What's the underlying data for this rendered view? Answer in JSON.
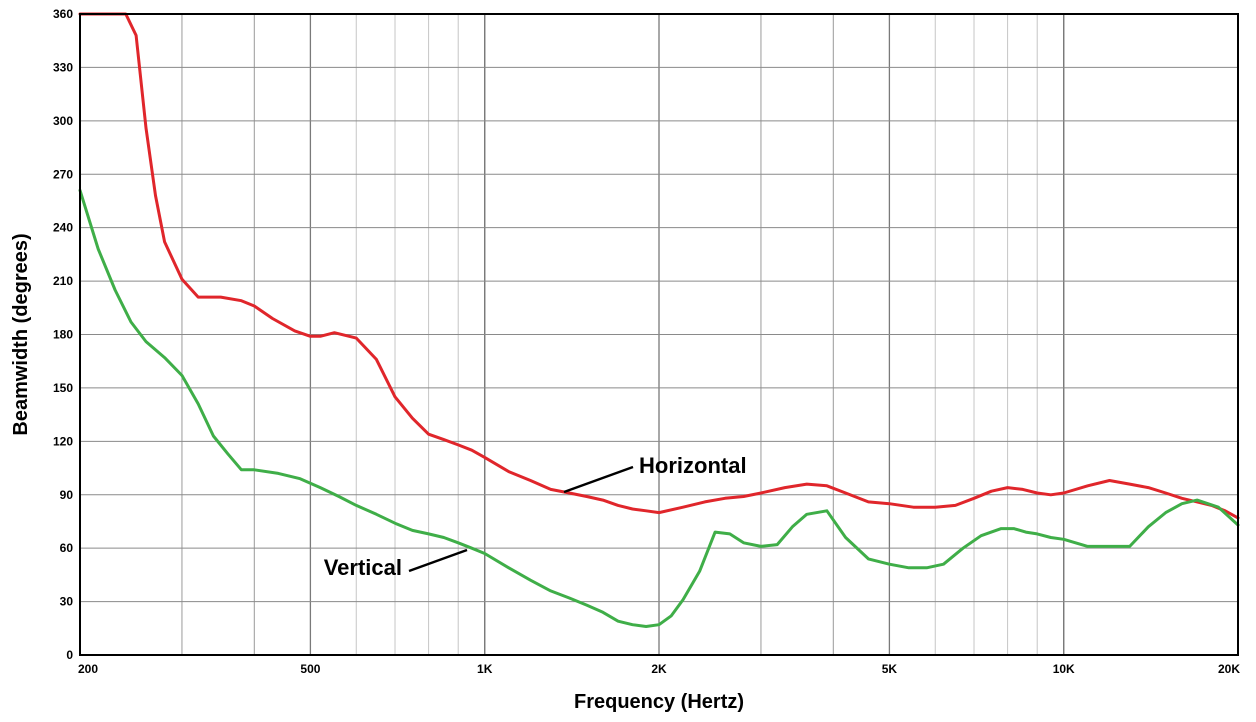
{
  "chart_data": {
    "type": "line",
    "title": "",
    "xlabel": "Frequency (Hertz)",
    "ylabel": "Beamwidth (degrees)",
    "xscale": "log",
    "xlim": [
      200,
      20000
    ],
    "ylim": [
      0,
      360
    ],
    "grid": true,
    "x_tick_values": [
      200,
      500,
      1000,
      2000,
      5000,
      10000,
      20000
    ],
    "x_tick_labels": [
      "200",
      "500",
      "1K",
      "2K",
      "5K",
      "10K",
      "20K"
    ],
    "y_ticks": [
      0,
      30,
      60,
      90,
      120,
      150,
      180,
      210,
      240,
      270,
      300,
      330,
      360
    ],
    "y_tick_labels": [
      "0",
      "30",
      "60",
      "90",
      "120",
      "150",
      "180",
      "210",
      "240",
      "270",
      "300",
      "330",
      "360"
    ],
    "series": [
      {
        "name": "Horizontal",
        "color": "#e0262b",
        "x": [
          200,
          220,
          240,
          250,
          260,
          270,
          280,
          300,
          320,
          350,
          380,
          400,
          430,
          470,
          500,
          520,
          550,
          600,
          650,
          700,
          750,
          800,
          850,
          900,
          950,
          1000,
          1100,
          1200,
          1300,
          1400,
          1500,
          1600,
          1700,
          1800,
          1900,
          2000,
          2200,
          2400,
          2600,
          2800,
          3000,
          3300,
          3600,
          3900,
          4200,
          4600,
          5000,
          5500,
          6000,
          6500,
          7000,
          7500,
          8000,
          8500,
          9000,
          9500,
          10000,
          11000,
          12000,
          13000,
          14000,
          15000,
          16000,
          17000,
          18000,
          19000,
          20000
        ],
        "values": [
          360,
          360,
          360,
          348,
          296,
          258,
          232,
          211,
          201,
          201,
          199,
          196,
          189,
          182,
          179,
          179,
          181,
          178,
          166,
          145,
          133,
          124,
          121,
          118,
          115,
          111,
          103,
          98,
          93,
          91,
          89,
          87,
          84,
          82,
          81,
          80,
          83,
          86,
          88,
          89,
          91,
          94,
          96,
          95,
          91,
          86,
          85,
          83,
          83,
          84,
          88,
          92,
          94,
          93,
          91,
          90,
          91,
          95,
          98,
          96,
          94,
          91,
          88,
          86,
          84,
          81,
          77
        ]
      },
      {
        "name": "Vertical",
        "color": "#3fae48",
        "x": [
          200,
          215,
          230,
          245,
          260,
          280,
          300,
          320,
          340,
          360,
          380,
          400,
          440,
          480,
          520,
          560,
          600,
          650,
          700,
          750,
          800,
          850,
          900,
          950,
          1000,
          1100,
          1200,
          1300,
          1400,
          1500,
          1600,
          1700,
          1800,
          1900,
          2000,
          2100,
          2200,
          2350,
          2500,
          2650,
          2800,
          3000,
          3200,
          3400,
          3600,
          3900,
          4200,
          4600,
          5000,
          5400,
          5800,
          6200,
          6700,
          7200,
          7800,
          8200,
          8600,
          9000,
          9500,
          10000,
          11000,
          12000,
          13000,
          14000,
          15000,
          16000,
          17000,
          18500,
          20000
        ],
        "values": [
          261,
          228,
          205,
          187,
          176,
          167,
          157,
          141,
          123,
          113,
          104,
          104,
          102,
          99,
          94,
          89,
          84,
          79,
          74,
          70,
          68,
          66,
          63,
          60,
          57,
          49,
          42,
          36,
          32,
          28,
          24,
          19,
          17,
          16,
          17,
          22,
          31,
          47,
          69,
          68,
          63,
          61,
          62,
          72,
          79,
          81,
          66,
          54,
          51,
          49,
          49,
          51,
          60,
          67,
          71,
          71,
          69,
          68,
          66,
          65,
          61,
          61,
          61,
          72,
          80,
          85,
          87,
          83,
          73
        ]
      }
    ],
    "annotations": [
      {
        "text": "Horizontal",
        "series": "Horizontal"
      },
      {
        "text": "Vertical",
        "series": "Vertical"
      }
    ]
  }
}
